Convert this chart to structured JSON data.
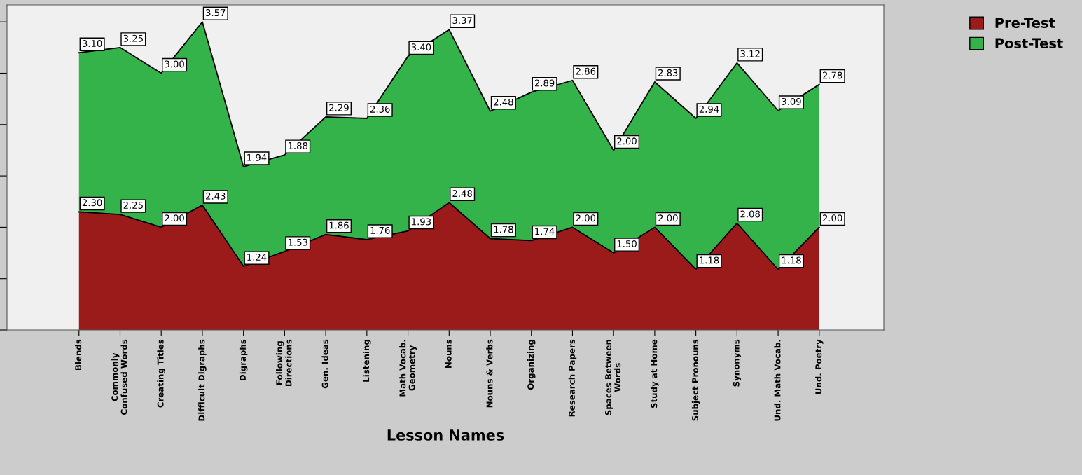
{
  "chart_data": {
    "type": "area",
    "stacked": true,
    "xlabel": "Lesson Names",
    "categories": [
      "Blends",
      "Commonly\nConfused Words",
      "Creating Titles",
      "Difficult Digraphs",
      "Digraphs",
      "Following\nDirections",
      "Gen. Ideas",
      "Listening",
      "Math Vocab.\nGeometry",
      "Nouns",
      "Nouns & Verbs",
      "Organizing",
      "Research Papers",
      "Spaces Between\nWords",
      "Study at Home",
      "Subject Pronouns",
      "Synonyms",
      "Und. Math Vocab.",
      "Und. Poetry"
    ],
    "series": [
      {
        "name": "Pre-Test",
        "color": "#9b1a1a",
        "values": [
          2.3,
          2.25,
          2.0,
          2.43,
          1.24,
          1.53,
          1.86,
          1.76,
          1.93,
          2.48,
          1.78,
          1.74,
          2.0,
          1.5,
          2.0,
          1.18,
          2.08,
          1.18,
          2.0
        ],
        "value_labels": [
          "2.30",
          "2.25",
          "2.00",
          "2.43",
          "1.24",
          "1.53",
          "1.86",
          "1.76",
          "1.93",
          "2.48",
          "1.78",
          "1.74",
          "2.00",
          "1.50",
          "2.00",
          "1.18",
          "2.08",
          "1.18",
          "2.00"
        ]
      },
      {
        "name": "Post-Test",
        "color": "#34b34a",
        "values": [
          3.1,
          3.25,
          3.0,
          3.57,
          1.94,
          1.88,
          2.29,
          2.36,
          3.4,
          3.37,
          2.48,
          2.89,
          2.86,
          2.0,
          2.83,
          2.94,
          3.12,
          3.09,
          2.78
        ],
        "value_labels": [
          "3.10",
          "3.25",
          "3.00",
          "3.57",
          "1.94",
          "1.88",
          "2.29",
          "2.36",
          "3.40",
          "3.37",
          "2.48",
          "2.89",
          "2.86",
          "2.00",
          "2.83",
          "2.94",
          "3.12",
          "3.09",
          "2.78"
        ]
      }
    ],
    "ylim": [
      0,
      6.33
    ],
    "tick_labels": "x",
    "grid": false,
    "legend": "top right",
    "line_style": "solid",
    "marker": "none"
  }
}
